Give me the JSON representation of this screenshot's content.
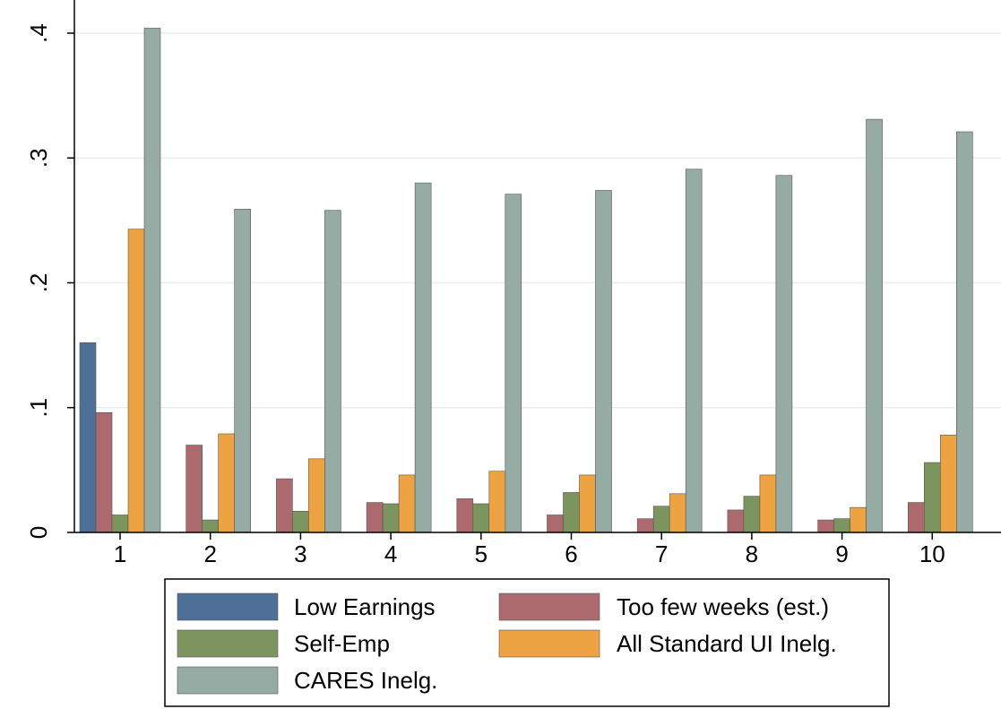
{
  "chart_data": {
    "type": "bar",
    "title": "",
    "xlabel": "",
    "ylabel": "",
    "categories": [
      "1",
      "2",
      "3",
      "4",
      "5",
      "6",
      "7",
      "8",
      "9",
      "10"
    ],
    "ylim": [
      0,
      0.42
    ],
    "yticks": [
      {
        "value": 0,
        "label": "0"
      },
      {
        "value": 0.1,
        "label": ".1"
      },
      {
        "value": 0.2,
        "label": ".2"
      },
      {
        "value": 0.3,
        "label": ".3"
      },
      {
        "value": 0.4,
        "label": ".4"
      }
    ],
    "grid": true,
    "legend_position": "bottom",
    "series": [
      {
        "name": "Low Earnings",
        "color": "#4e7097",
        "values": [
          0.152,
          0,
          0,
          0,
          0,
          0,
          0,
          0,
          0,
          0
        ]
      },
      {
        "name": "Too few weeks (est.)",
        "color": "#ad6a6e",
        "values": [
          0.096,
          0.07,
          0.043,
          0.024,
          0.027,
          0.014,
          0.011,
          0.018,
          0.01,
          0.024
        ]
      },
      {
        "name": "Self-Emp",
        "color": "#7c945e",
        "values": [
          0.014,
          0.01,
          0.017,
          0.023,
          0.023,
          0.032,
          0.021,
          0.029,
          0.011,
          0.056
        ]
      },
      {
        "name": "All Standard UI Inelg.",
        "color": "#eea343",
        "values": [
          0.243,
          0.079,
          0.059,
          0.046,
          0.049,
          0.046,
          0.031,
          0.046,
          0.02,
          0.078
        ]
      },
      {
        "name": "CARES Inelg.",
        "color": "#95aba3",
        "values": [
          0.404,
          0.259,
          0.258,
          0.28,
          0.271,
          0.274,
          0.291,
          0.286,
          0.331,
          0.321
        ]
      }
    ]
  }
}
